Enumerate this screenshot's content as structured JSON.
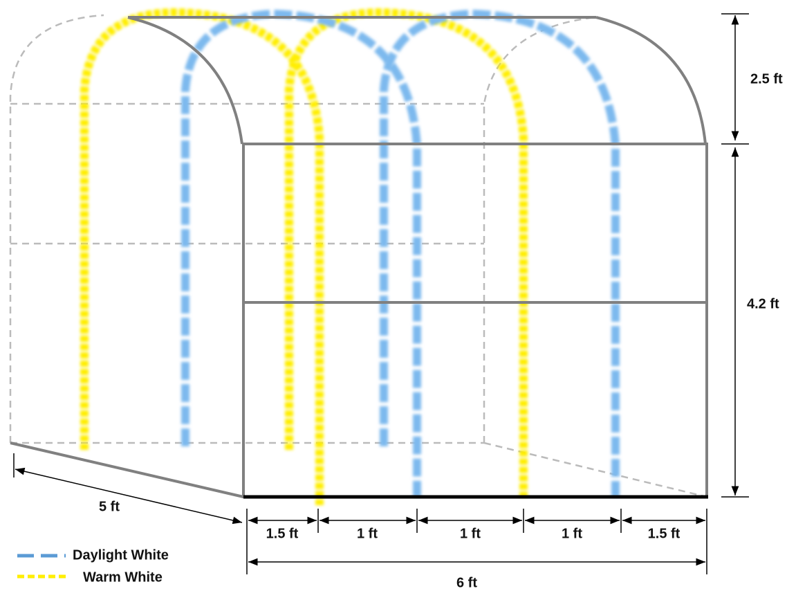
{
  "dimensions": {
    "arch_height": "2.5 ft",
    "wall_height": "4.2 ft",
    "depth": "5 ft",
    "total_width": "6 ft",
    "spacings": [
      "1.5 ft",
      "1 ft",
      "1 ft",
      "1 ft",
      "1.5 ft"
    ]
  },
  "legend": [
    "Daylight White",
    "Warm White"
  ]
}
